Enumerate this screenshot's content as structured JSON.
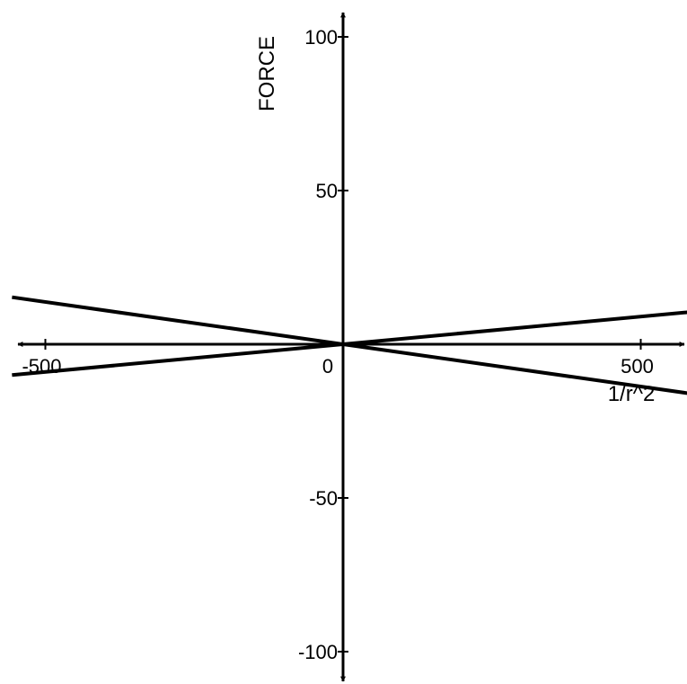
{
  "chart_data": {
    "type": "line",
    "title": "",
    "xlabel": "1/r^2",
    "ylabel": "FORCE",
    "xlim": [
      -556,
      578
    ],
    "ylim": [
      -107,
      107
    ],
    "x_ticks": [
      -500,
      0,
      500
    ],
    "x_tick_labels": [
      "-500",
      "0",
      "500"
    ],
    "y_ticks": [
      -100,
      -50,
      50,
      100
    ],
    "y_tick_labels": [
      "-100",
      "-50",
      "50",
      "100"
    ],
    "grid": false,
    "legend": "none",
    "line_color": "#000000",
    "series": [
      {
        "x": [
          -556,
          0,
          578
        ],
        "y": [
          15.3,
          0,
          -15.9
        ]
      },
      {
        "x": [
          -556,
          0,
          578
        ],
        "y": [
          -10.0,
          0,
          10.4
        ]
      }
    ]
  }
}
